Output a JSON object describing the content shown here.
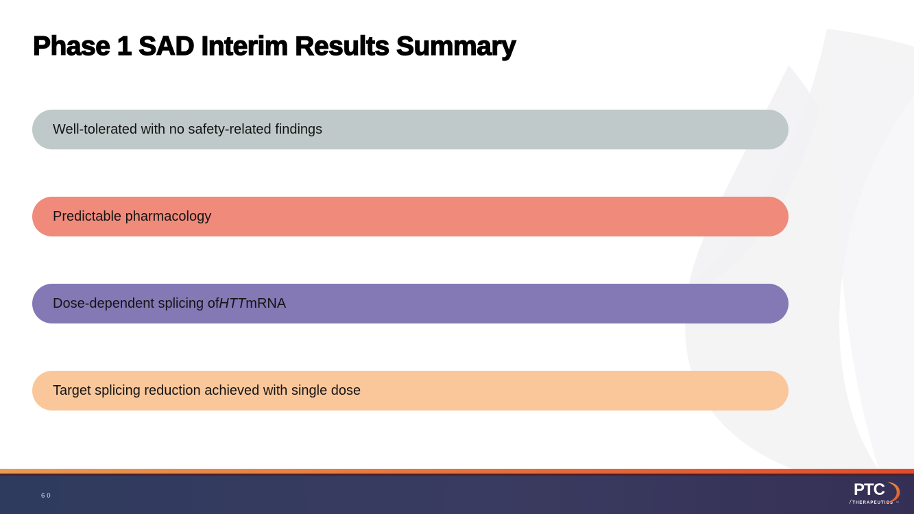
{
  "slide": {
    "title": "Phase 1 SAD Interim Results Summary"
  },
  "bars": [
    {
      "color": "#c0c9c9",
      "segments": [
        {
          "text": "Well-tolerated with no safety-related findings",
          "italic": false
        }
      ]
    },
    {
      "color": "#f08a7b",
      "segments": [
        {
          "text": "Predictable pharmacology",
          "italic": false
        }
      ]
    },
    {
      "color": "#8478b5",
      "segments": [
        {
          "text": "Dose-dependent splicing of ",
          "italic": false
        },
        {
          "text": "HTT",
          "italic": true
        },
        {
          "text": " mRNA",
          "italic": false
        }
      ]
    },
    {
      "color": "#fac79b",
      "segments": [
        {
          "text": "Target splicing reduction achieved with single dose",
          "italic": false
        }
      ]
    }
  ],
  "footer": {
    "page_number": "60",
    "accent_color_left": "#e99a53",
    "accent_color_right": "#e04c2d",
    "bar_color_left": "#2e3b5e",
    "bar_color_mid": "#3a3b60",
    "bar_color_right": "#352f55",
    "logo": {
      "brand": "PTC",
      "slash": "/",
      "sub": "THERAPEUTICS",
      "tm": "™",
      "swoosh_color_start": "#f2a24e",
      "swoosh_color_end": "#d8512a"
    }
  }
}
